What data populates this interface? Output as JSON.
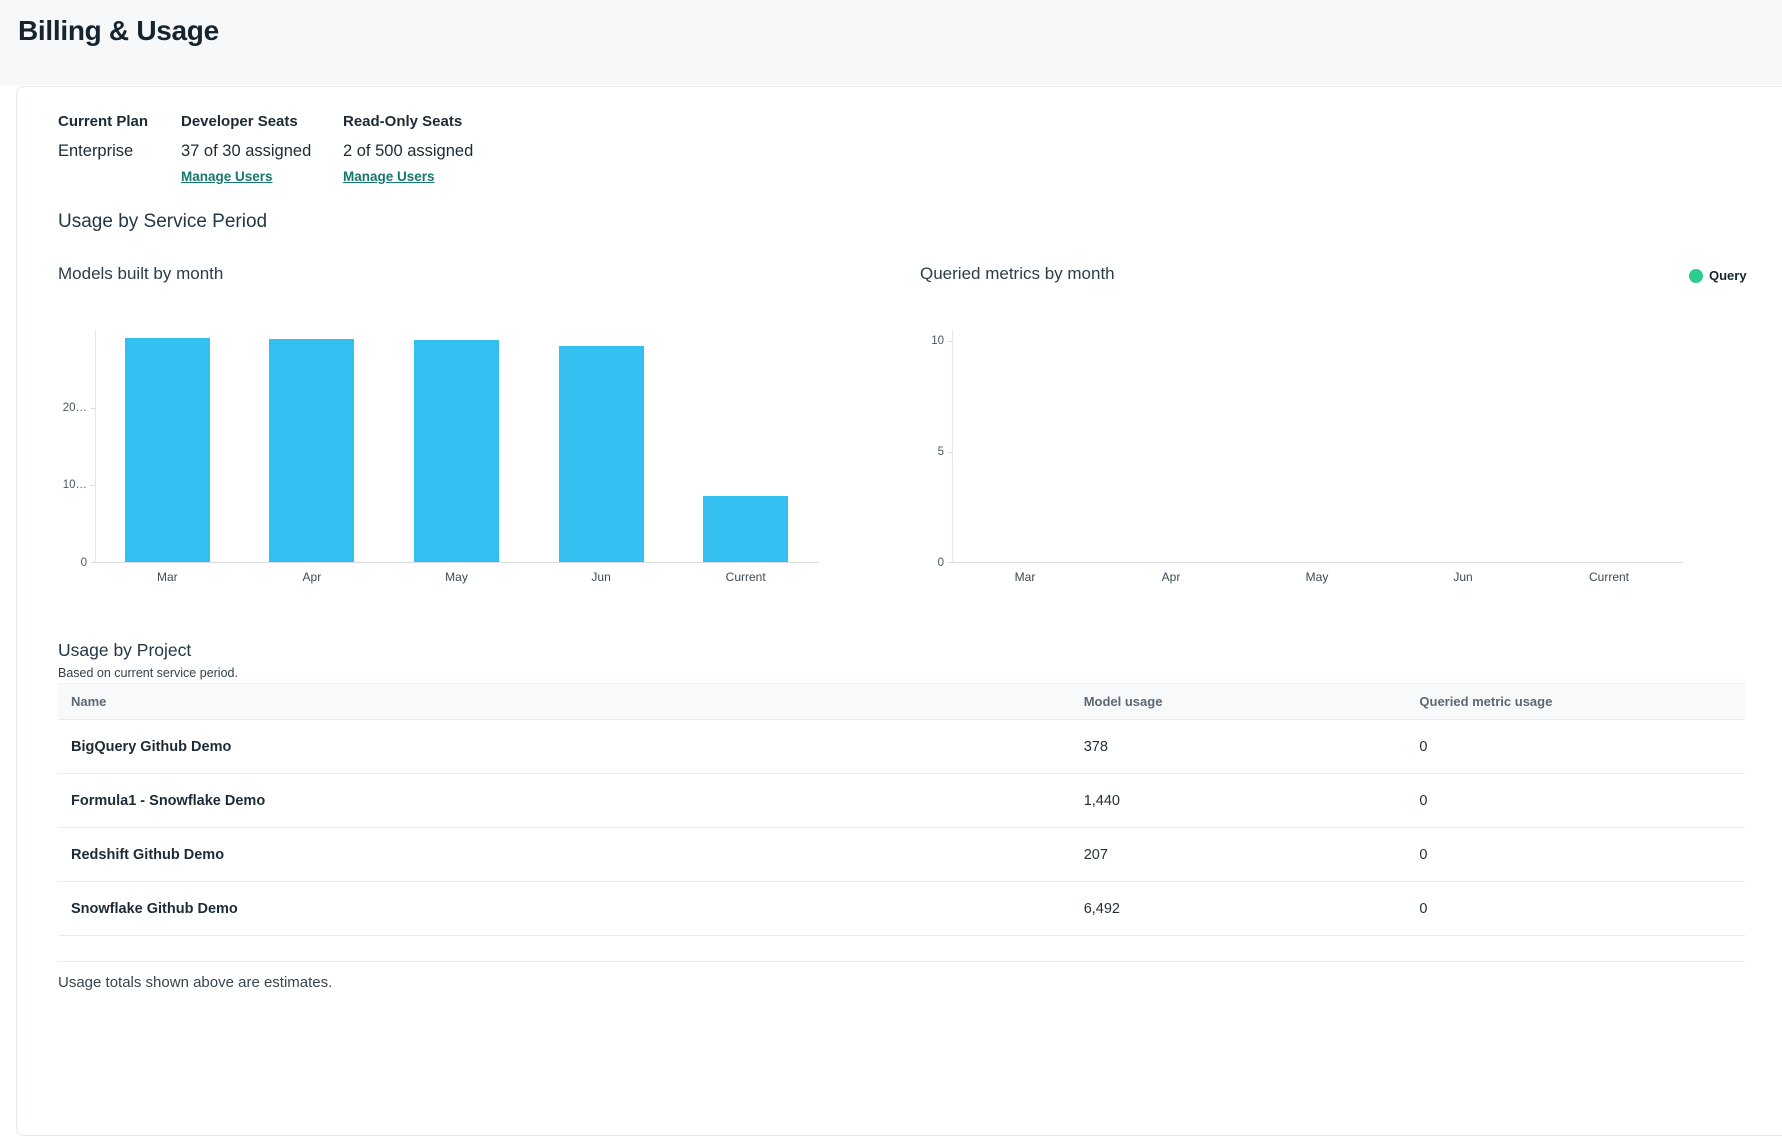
{
  "page": {
    "title": "Billing & Usage"
  },
  "plan": {
    "columns": [
      {
        "label": "Current Plan",
        "value": "Enterprise"
      },
      {
        "label": "Developer Seats",
        "value": "37 of 30 assigned",
        "link": "Manage Users"
      },
      {
        "label": "Read-Only Seats",
        "value": "2 of 500 assigned",
        "link": "Manage Users"
      }
    ]
  },
  "usage_by_service_period": {
    "title": "Usage by Service Period"
  },
  "chart_data": [
    {
      "type": "bar",
      "title": "Models built by month",
      "categories": [
        "Mar",
        "Apr",
        "May",
        "Jun",
        "Current"
      ],
      "values": [
        28800,
        28700,
        28600,
        27800,
        8517
      ],
      "bar_color": "#33bfef",
      "ylim": [
        0,
        30000
      ],
      "yticks": [
        {
          "value": 0,
          "label": "0"
        },
        {
          "value": 10000,
          "label": "10…"
        },
        {
          "value": 20000,
          "label": "20…"
        }
      ],
      "grid": false,
      "legend": []
    },
    {
      "type": "bar",
      "title": "Queried metrics by month",
      "categories": [
        "Mar",
        "Apr",
        "May",
        "Jun",
        "Current"
      ],
      "values": [
        0,
        0,
        0,
        0,
        0
      ],
      "bar_color": "#2ecc8f",
      "ylim": [
        0,
        10
      ],
      "yticks": [
        {
          "value": 0,
          "label": "0"
        },
        {
          "value": 5,
          "label": "5"
        },
        {
          "value": 10,
          "label": "10"
        }
      ],
      "grid": false,
      "legend": [
        {
          "label": "Query",
          "color": "#2ecc8f"
        }
      ]
    }
  ],
  "project_usage": {
    "title": "Usage by Project",
    "subtitle": "Based on current service period.",
    "columns": [
      "Name",
      "Model usage",
      "Queried metric usage"
    ],
    "rows": [
      {
        "name": "BigQuery Github Demo",
        "model_usage": "378",
        "queried_metric_usage": "0"
      },
      {
        "name": "Formula1 - Snowflake Demo",
        "model_usage": "1,440",
        "queried_metric_usage": "0"
      },
      {
        "name": "Redshift Github Demo",
        "model_usage": "207",
        "queried_metric_usage": "0"
      },
      {
        "name": "Snowflake Github Demo",
        "model_usage": "6,492",
        "queried_metric_usage": "0"
      }
    ],
    "footnote": "Usage totals shown above are estimates."
  },
  "colors": {
    "link_teal": "#15786d",
    "bar_blue": "#33bfef",
    "legend_green": "#2ecc8f",
    "header_band_bg": "#f7f8f9"
  }
}
